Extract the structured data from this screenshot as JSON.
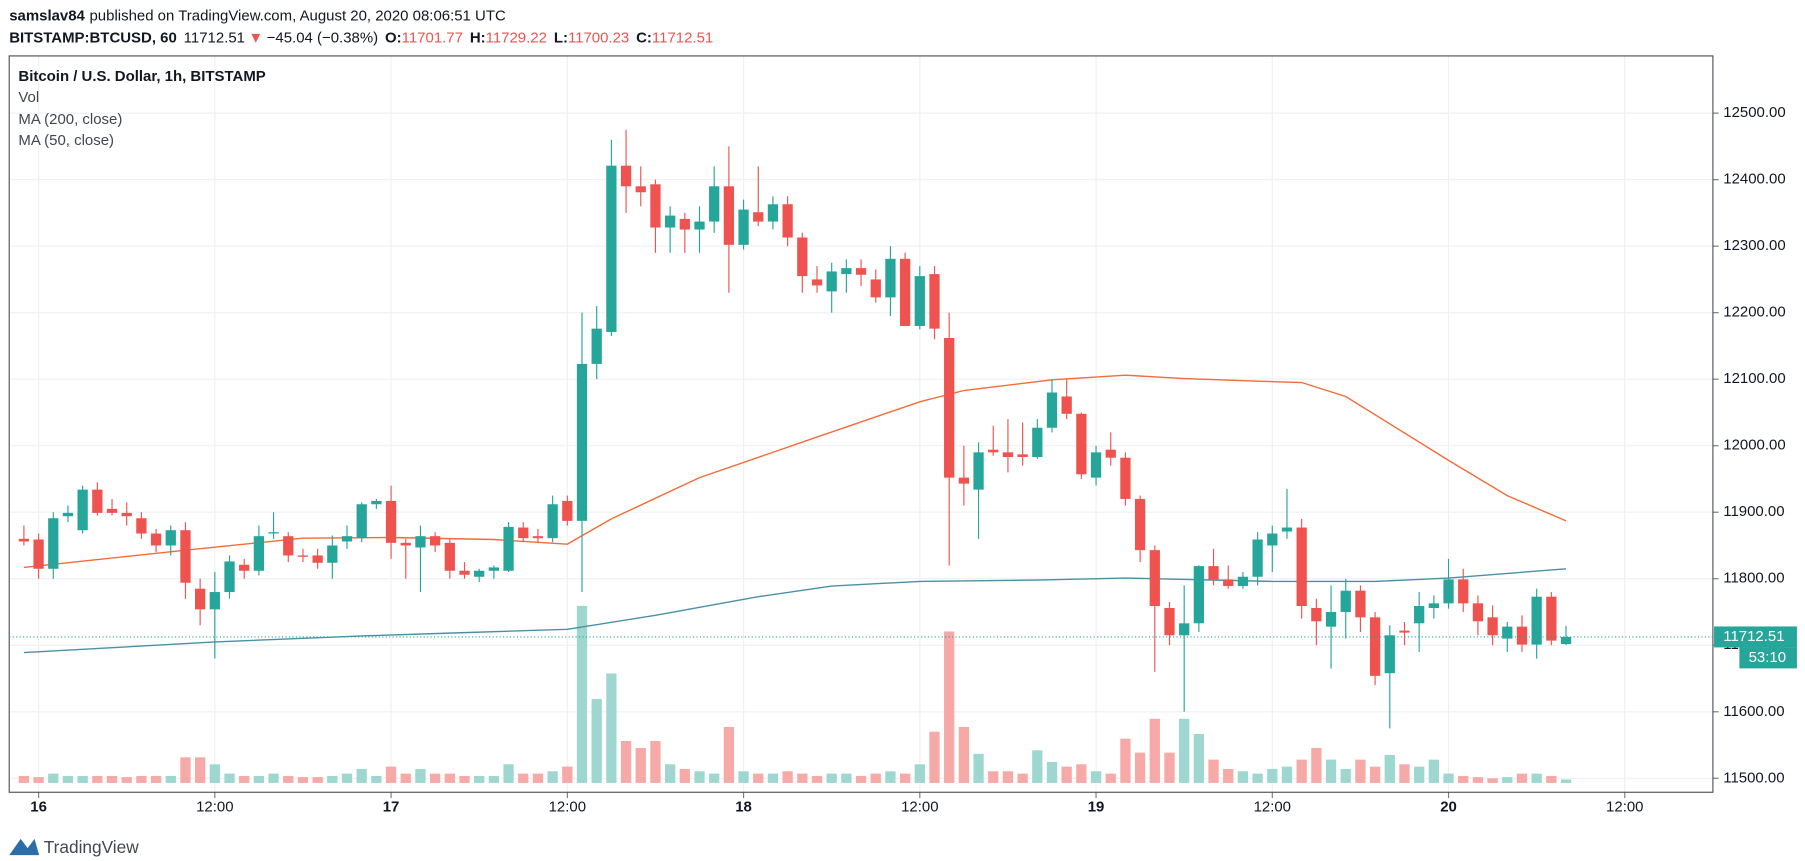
{
  "chart_data": {
    "type": "candlestick",
    "author": "samslav84",
    "published": "published on TradingView.com, August 20, 2020 08:06:51 UTC",
    "symbol": "BITSTAMP:BTCUSD, 60",
    "arrow": "▼",
    "change": "−45.04 (−0.38%)",
    "o_label": "O:",
    "h_label": "H:",
    "l_label": "L:",
    "c_label": "C:",
    "legend_title": "Bitcoin / U.S. Dollar, 1h, BITSTAMP",
    "volume_label": "Vol",
    "countdown": "53:10",
    "brand": "TradingView",
    "up_color": "#26a69a",
    "down_color": "#ef5350",
    "up_volume_color": "#9ed6d0",
    "down_volume_color": "#f6a9a7",
    "grid": true,
    "x": [
      "15 23:00",
      "16 00:00",
      "16 01:00",
      "16 02:00",
      "16 03:00",
      "16 04:00",
      "16 05:00",
      "16 06:00",
      "16 07:00",
      "16 08:00",
      "16 09:00",
      "16 10:00",
      "16 11:00",
      "16 12:00",
      "16 13:00",
      "16 14:00",
      "16 15:00",
      "16 16:00",
      "16 17:00",
      "16 18:00",
      "16 19:00",
      "16 20:00",
      "16 21:00",
      "16 22:00",
      "16 23:00",
      "17 00:00",
      "17 01:00",
      "17 02:00",
      "17 03:00",
      "17 04:00",
      "17 05:00",
      "17 06:00",
      "17 07:00",
      "17 08:00",
      "17 09:00",
      "17 10:00",
      "17 11:00",
      "17 12:00",
      "17 13:00",
      "17 14:00",
      "17 15:00",
      "17 16:00",
      "17 17:00",
      "17 18:00",
      "17 19:00",
      "17 20:00",
      "17 21:00",
      "17 22:00",
      "17 23:00",
      "18 00:00",
      "18 01:00",
      "18 02:00",
      "18 03:00",
      "18 04:00",
      "18 05:00",
      "18 06:00",
      "18 07:00",
      "18 08:00",
      "18 09:00",
      "18 10:00",
      "18 11:00",
      "18 12:00",
      "18 13:00",
      "18 14:00",
      "18 15:00",
      "18 16:00",
      "18 17:00",
      "18 18:00",
      "18 19:00",
      "18 20:00",
      "18 21:00",
      "18 22:00",
      "18 23:00",
      "19 00:00",
      "19 01:00",
      "19 02:00",
      "19 03:00",
      "19 04:00",
      "19 05:00",
      "19 06:00",
      "19 07:00",
      "19 08:00",
      "19 09:00",
      "19 10:00",
      "19 11:00",
      "19 12:00",
      "19 13:00",
      "19 14:00",
      "19 15:00",
      "19 16:00",
      "19 17:00",
      "19 18:00",
      "19 19:00",
      "19 20:00",
      "19 21:00",
      "19 22:00",
      "19 23:00",
      "20 00:00",
      "20 01:00",
      "20 02:00",
      "20 03:00",
      "20 04:00",
      "20 05:00",
      "20 06:00",
      "20 07:00",
      "20 08:00"
    ],
    "open": [
      11860,
      11859,
      11815,
      11894,
      11873,
      11934,
      11905,
      11899,
      11891,
      11868,
      11850,
      11873,
      11785,
      11754,
      11780,
      11821,
      11812,
      11868,
      11864,
      11835,
      11835,
      11824,
      11856,
      11861,
      11912,
      11917,
      11854,
      11847,
      11864,
      11854,
      11812,
      11803,
      11812,
      11812,
      11877,
      11864,
      11861,
      11917,
      11887,
      12123,
      12171,
      12421,
      12390,
      12393,
      12328,
      12341,
      12325,
      12337,
      12390,
      12302,
      12351,
      12337,
      12363,
      12313,
      12250,
      12232,
      12258,
      12267,
      12250,
      12223,
      12281,
      12180,
      12258,
      12162,
      11952,
      11934,
      11994,
      11990,
      11987,
      11983,
      12027,
      12074,
      12048,
      11952,
      11994,
      11982,
      11920,
      11843,
      11756,
      11715,
      11733,
      11819,
      11799,
      11789,
      11803,
      11850,
      11871,
      11877,
      11756,
      11728,
      11750,
      11782,
      11742,
      11658,
      11722,
      11733,
      11756,
      11763,
      11799,
      11763,
      11742,
      11710,
      11728,
      11701,
      11773,
      11701.77
    ],
    "high": [
      11880,
      11868,
      11900,
      11910,
      11940,
      11945,
      11920,
      11915,
      11900,
      11875,
      11880,
      11885,
      11800,
      11810,
      11835,
      11830,
      11880,
      11900,
      11870,
      11845,
      11845,
      11865,
      11880,
      11915,
      11920,
      11940,
      11860,
      11880,
      11870,
      11860,
      11825,
      11815,
      11820,
      11885,
      11885,
      11875,
      11925,
      11925,
      12200,
      12210,
      12460,
      12475,
      12420,
      12400,
      12360,
      12350,
      12360,
      12420,
      12450,
      12370,
      12420,
      12375,
      12375,
      12320,
      12270,
      12275,
      12280,
      12280,
      12265,
      12300,
      12290,
      12270,
      12270,
      12200,
      12000,
      12005,
      12030,
      12040,
      12035,
      12040,
      12100,
      12100,
      12050,
      12000,
      12020,
      11990,
      11925,
      11850,
      11765,
      11790,
      11820,
      11845,
      11820,
      11810,
      11870,
      11880,
      11935,
      11890,
      11770,
      11790,
      11800,
      11790,
      11750,
      11730,
      11735,
      11780,
      11775,
      11830,
      11815,
      11775,
      11760,
      11735,
      11745,
      11785,
      11780,
      11729.22
    ],
    "low": [
      11850,
      11800,
      11800,
      11885,
      11868,
      11895,
      11895,
      11880,
      11860,
      11840,
      11835,
      11770,
      11730,
      11680,
      11770,
      11800,
      11805,
      11860,
      11825,
      11825,
      11815,
      11800,
      11845,
      11855,
      11905,
      11830,
      11800,
      11780,
      11840,
      11800,
      11800,
      11795,
      11800,
      11810,
      11855,
      11855,
      11855,
      11880,
      11780,
      12100,
      12165,
      12350,
      12360,
      12290,
      12290,
      12290,
      12290,
      12320,
      12230,
      12295,
      12330,
      12325,
      12300,
      12230,
      12230,
      12200,
      12230,
      12240,
      12215,
      12195,
      12180,
      12175,
      12160,
      11820,
      11910,
      11860,
      11985,
      11960,
      11970,
      11980,
      12020,
      12040,
      11950,
      11940,
      11970,
      11910,
      11825,
      11660,
      11700,
      11600,
      11720,
      11790,
      11785,
      11785,
      11790,
      11810,
      11860,
      11740,
      11700,
      11665,
      11710,
      11720,
      11640,
      11575,
      11700,
      11690,
      11740,
      11755,
      11750,
      11715,
      11700,
      11690,
      11690,
      11680,
      11700,
      11700.23
    ],
    "close": [
      11856,
      11815,
      11891,
      11899,
      11934,
      11899,
      11899,
      11894,
      11868,
      11850,
      11873,
      11794,
      11754,
      11780,
      11826,
      11812,
      11864,
      11870,
      11835,
      11833,
      11824,
      11850,
      11864,
      11912,
      11917,
      11854,
      11850,
      11864,
      11850,
      11812,
      11806,
      11812,
      11817,
      11878,
      11861,
      11861,
      11912,
      11887,
      12123,
      12176,
      12421,
      12390,
      12381,
      12328,
      12346,
      12325,
      12337,
      12390,
      12302,
      12355,
      12337,
      12363,
      12313,
      12255,
      12241,
      12262,
      12267,
      12257,
      12223,
      12281,
      12180,
      12255,
      12176,
      11952,
      11943,
      11990,
      11990,
      11983,
      11983,
      12027,
      12080,
      12048,
      11957,
      11990,
      11982,
      11920,
      11843,
      11759,
      11715,
      11733,
      11819,
      11799,
      11789,
      11803,
      11859,
      11868,
      11877,
      11759,
      11736,
      11750,
      11782,
      11742,
      11654,
      11715,
      11719,
      11759,
      11763,
      11799,
      11763,
      11736,
      11715,
      11728,
      11701,
      11773,
      11707,
      11712.51
    ],
    "volume": [
      6,
      5,
      8,
      6,
      6,
      6,
      6,
      5,
      6,
      6,
      6,
      22,
      22,
      16,
      8,
      6,
      6,
      8,
      6,
      5,
      5,
      6,
      8,
      12,
      6,
      14,
      8,
      12,
      8,
      8,
      6,
      6,
      6,
      16,
      8,
      8,
      10,
      14,
      152,
      72,
      94,
      36,
      30,
      36,
      16,
      12,
      10,
      8,
      48,
      10,
      8,
      8,
      10,
      8,
      6,
      8,
      8,
      6,
      8,
      10,
      8,
      16,
      44,
      130,
      48,
      25,
      10,
      10,
      8,
      28,
      18,
      14,
      16,
      10,
      8,
      38,
      26,
      55,
      26,
      55,
      42,
      20,
      12,
      10,
      8,
      12,
      14,
      20,
      30,
      20,
      12,
      20,
      14,
      24,
      16,
      14,
      20,
      8,
      6,
      5,
      4,
      5,
      8,
      8,
      6,
      3
    ],
    "series": [
      {
        "name": "MA (200, close)",
        "color": "#4a90a4",
        "x": [
          "15 23:00",
          "16 12:00",
          "16 22:00",
          "17 05:00",
          "17 12:00",
          "17 18:00",
          "18 01:00",
          "18 06:00",
          "18 12:00",
          "18 20:00",
          "19 02:00",
          "19 12:00",
          "19 19:00",
          "20 00:00",
          "20 08:00"
        ],
        "values": [
          11689,
          11705,
          11714,
          11719,
          11724,
          11745,
          11773,
          11789,
          11796,
          11798,
          11801,
          11796,
          11796,
          11801,
          11815
        ]
      },
      {
        "name": "MA (50, close)",
        "color": "#f26b38",
        "x": [
          "15 23:00",
          "16 10:00",
          "16 18:00",
          "17 00:00",
          "17 07:00",
          "17 12:00",
          "17 15:00",
          "17 21:00",
          "18 05:00",
          "18 12:00",
          "18 15:00",
          "18 21:00",
          "19 02:00",
          "19 06:00",
          "19 11:00",
          "19 14:00",
          "19 17:00",
          "20 00:00",
          "20 04:00",
          "20 08:00"
        ],
        "values": [
          11817,
          11843,
          11861,
          11862,
          11859,
          11852,
          11890,
          11952,
          12013,
          12066,
          12083,
          12099,
          12106,
          12101,
          12097,
          12095,
          12074,
          11978,
          11925,
          11887
        ]
      }
    ],
    "xlim": [
      "15 22:00",
      "20 18:00"
    ],
    "xticks": [
      {
        "value": "16 00:00",
        "label": "16"
      },
      {
        "value": "16 12:00",
        "label": "12:00"
      },
      {
        "value": "17 00:00",
        "label": "17"
      },
      {
        "value": "17 12:00",
        "label": "12:00"
      },
      {
        "value": "18 00:00",
        "label": "18"
      },
      {
        "value": "18 12:00",
        "label": "12:00"
      },
      {
        "value": "19 00:00",
        "label": "19"
      },
      {
        "value": "19 12:00",
        "label": "12:00"
      },
      {
        "value": "20 00:00",
        "label": "20"
      },
      {
        "value": "20 12:00",
        "label": "12:00"
      }
    ],
    "ylim": [
      11479,
      12586
    ],
    "yticks": [
      {
        "value": 11500,
        "label": "11500.00"
      },
      {
        "value": 11600,
        "label": "11600.00"
      },
      {
        "value": 11700,
        "label": "11700.00"
      },
      {
        "value": 11800,
        "label": "11800.00"
      },
      {
        "value": 11900,
        "label": "11900.00"
      },
      {
        "value": 12000,
        "label": "12000.00"
      },
      {
        "value": 12100,
        "label": "12100.00"
      },
      {
        "value": 12200,
        "label": "12200.00"
      },
      {
        "value": 12300,
        "label": "12300.00"
      },
      {
        "value": 12400,
        "label": "12400.00"
      },
      {
        "value": 12500,
        "label": "12500.00"
      }
    ]
  }
}
